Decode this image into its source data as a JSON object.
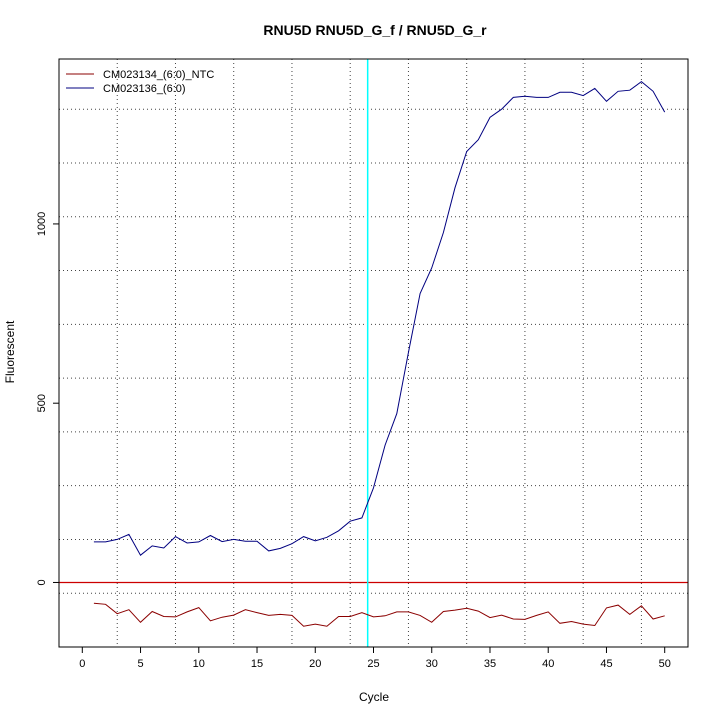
{
  "chart_data": {
    "type": "line",
    "title": "RNU5D  RNU5D_G_f / RNU5D_G_r",
    "xlabel": "Cycle",
    "ylabel": "Fluorescent",
    "xlim": [
      -2,
      52
    ],
    "ylim": [
      -180,
      1460
    ],
    "x_ticks": [
      0,
      5,
      10,
      15,
      20,
      25,
      30,
      35,
      40,
      45,
      50
    ],
    "y_ticks": [
      0,
      500,
      1000
    ],
    "x_grid": [
      3,
      8,
      13,
      18,
      23,
      28,
      33,
      38,
      43,
      48
    ],
    "y_grid": [
      -30,
      120,
      270,
      420,
      570,
      720,
      870,
      1020,
      1170,
      1320
    ],
    "threshold_x": 24.5,
    "threshold_color": "#00ffff",
    "baseline_y": 0,
    "baseline_color": "#cc0000",
    "legend_position": "top-left",
    "grid": true,
    "series": [
      {
        "name": "CM023134_(6:0)_NTC",
        "color": "#8b0000",
        "x": [
          1,
          2,
          3,
          4,
          5,
          6,
          7,
          8,
          9,
          10,
          11,
          12,
          13,
          14,
          15,
          16,
          17,
          18,
          19,
          20,
          21,
          22,
          23,
          24,
          25,
          26,
          27,
          28,
          29,
          30,
          31,
          32,
          33,
          34,
          35,
          36,
          37,
          38,
          39,
          40,
          41,
          42,
          43,
          44,
          45,
          46,
          47,
          48,
          49,
          50
        ],
        "y": [
          -58,
          -61,
          -87,
          -76,
          -111,
          -81,
          -95,
          -96,
          -82,
          -70,
          -107,
          -97,
          -91,
          -76,
          -84,
          -92,
          -89,
          -92,
          -122,
          -116,
          -122,
          -95,
          -95,
          -84,
          -96,
          -93,
          -82,
          -82,
          -92,
          -111,
          -81,
          -77,
          -72,
          -80,
          -98,
          -91,
          -102,
          -103,
          -92,
          -82,
          -114,
          -109,
          -116,
          -120,
          -71,
          -63,
          -89,
          -65,
          -102,
          -93
        ]
      },
      {
        "name": "CM023136_(6:0)",
        "color": "#000080",
        "x": [
          1,
          2,
          3,
          4,
          5,
          6,
          7,
          8,
          9,
          10,
          11,
          12,
          13,
          14,
          15,
          16,
          17,
          18,
          19,
          20,
          21,
          22,
          23,
          24,
          25,
          26,
          27,
          28,
          29,
          30,
          31,
          32,
          33,
          34,
          35,
          36,
          37,
          38,
          39,
          40,
          41,
          42,
          43,
          44,
          45,
          46,
          47,
          48,
          49,
          50
        ],
        "y": [
          113,
          113,
          120,
          134,
          76,
          102,
          96,
          128,
          110,
          113,
          131,
          114,
          120,
          115,
          115,
          88,
          95,
          108,
          128,
          116,
          126,
          144,
          171,
          180,
          264,
          383,
          471,
          641,
          806,
          877,
          976,
          1101,
          1202,
          1235,
          1297,
          1320,
          1353,
          1356,
          1353,
          1353,
          1367,
          1367,
          1358,
          1378,
          1342,
          1370,
          1373,
          1397,
          1370,
          1312
        ]
      }
    ]
  }
}
